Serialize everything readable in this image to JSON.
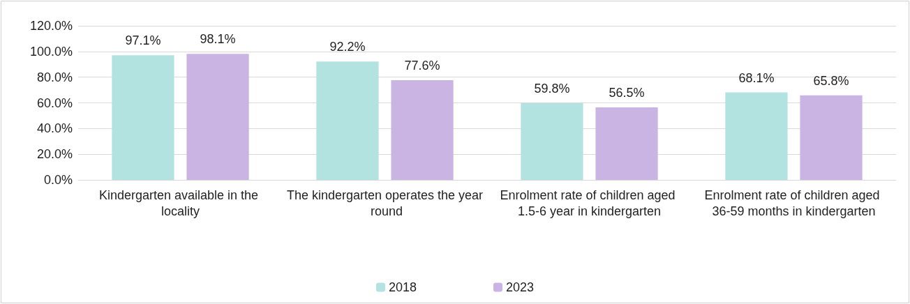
{
  "chart_data": {
    "type": "bar",
    "categories": [
      "Kindergarten available in the locality",
      "The kindergarten operates the year round",
      "Enrolment rate of children aged 1.5-6 year in kindergarten",
      "Enrolment rate of children aged 36-59 months in kindergarten"
    ],
    "series": [
      {
        "name": "2018",
        "color": "#b3e3e1",
        "values": [
          97.1,
          92.2,
          59.8,
          68.1
        ],
        "value_labels": [
          "97.1%",
          "92.2%",
          "59.8%",
          "68.1%"
        ]
      },
      {
        "name": "2023",
        "color": "#c9b4e3",
        "values": [
          98.1,
          77.6,
          56.5,
          65.8
        ],
        "value_labels": [
          "98.1%",
          "77.6%",
          "56.5%",
          "65.8%"
        ]
      }
    ],
    "ylim": [
      0,
      120
    ],
    "yticks": [
      {
        "value": 0,
        "label": "0.0%"
      },
      {
        "value": 20,
        "label": "20.0%"
      },
      {
        "value": 40,
        "label": "40.0%"
      },
      {
        "value": 60,
        "label": "60.0%"
      },
      {
        "value": 80,
        "label": "80.0%"
      },
      {
        "value": 100,
        "label": "100.0%"
      },
      {
        "value": 120,
        "label": "120.0%"
      }
    ],
    "grid": "y",
    "legend": "bottom"
  }
}
